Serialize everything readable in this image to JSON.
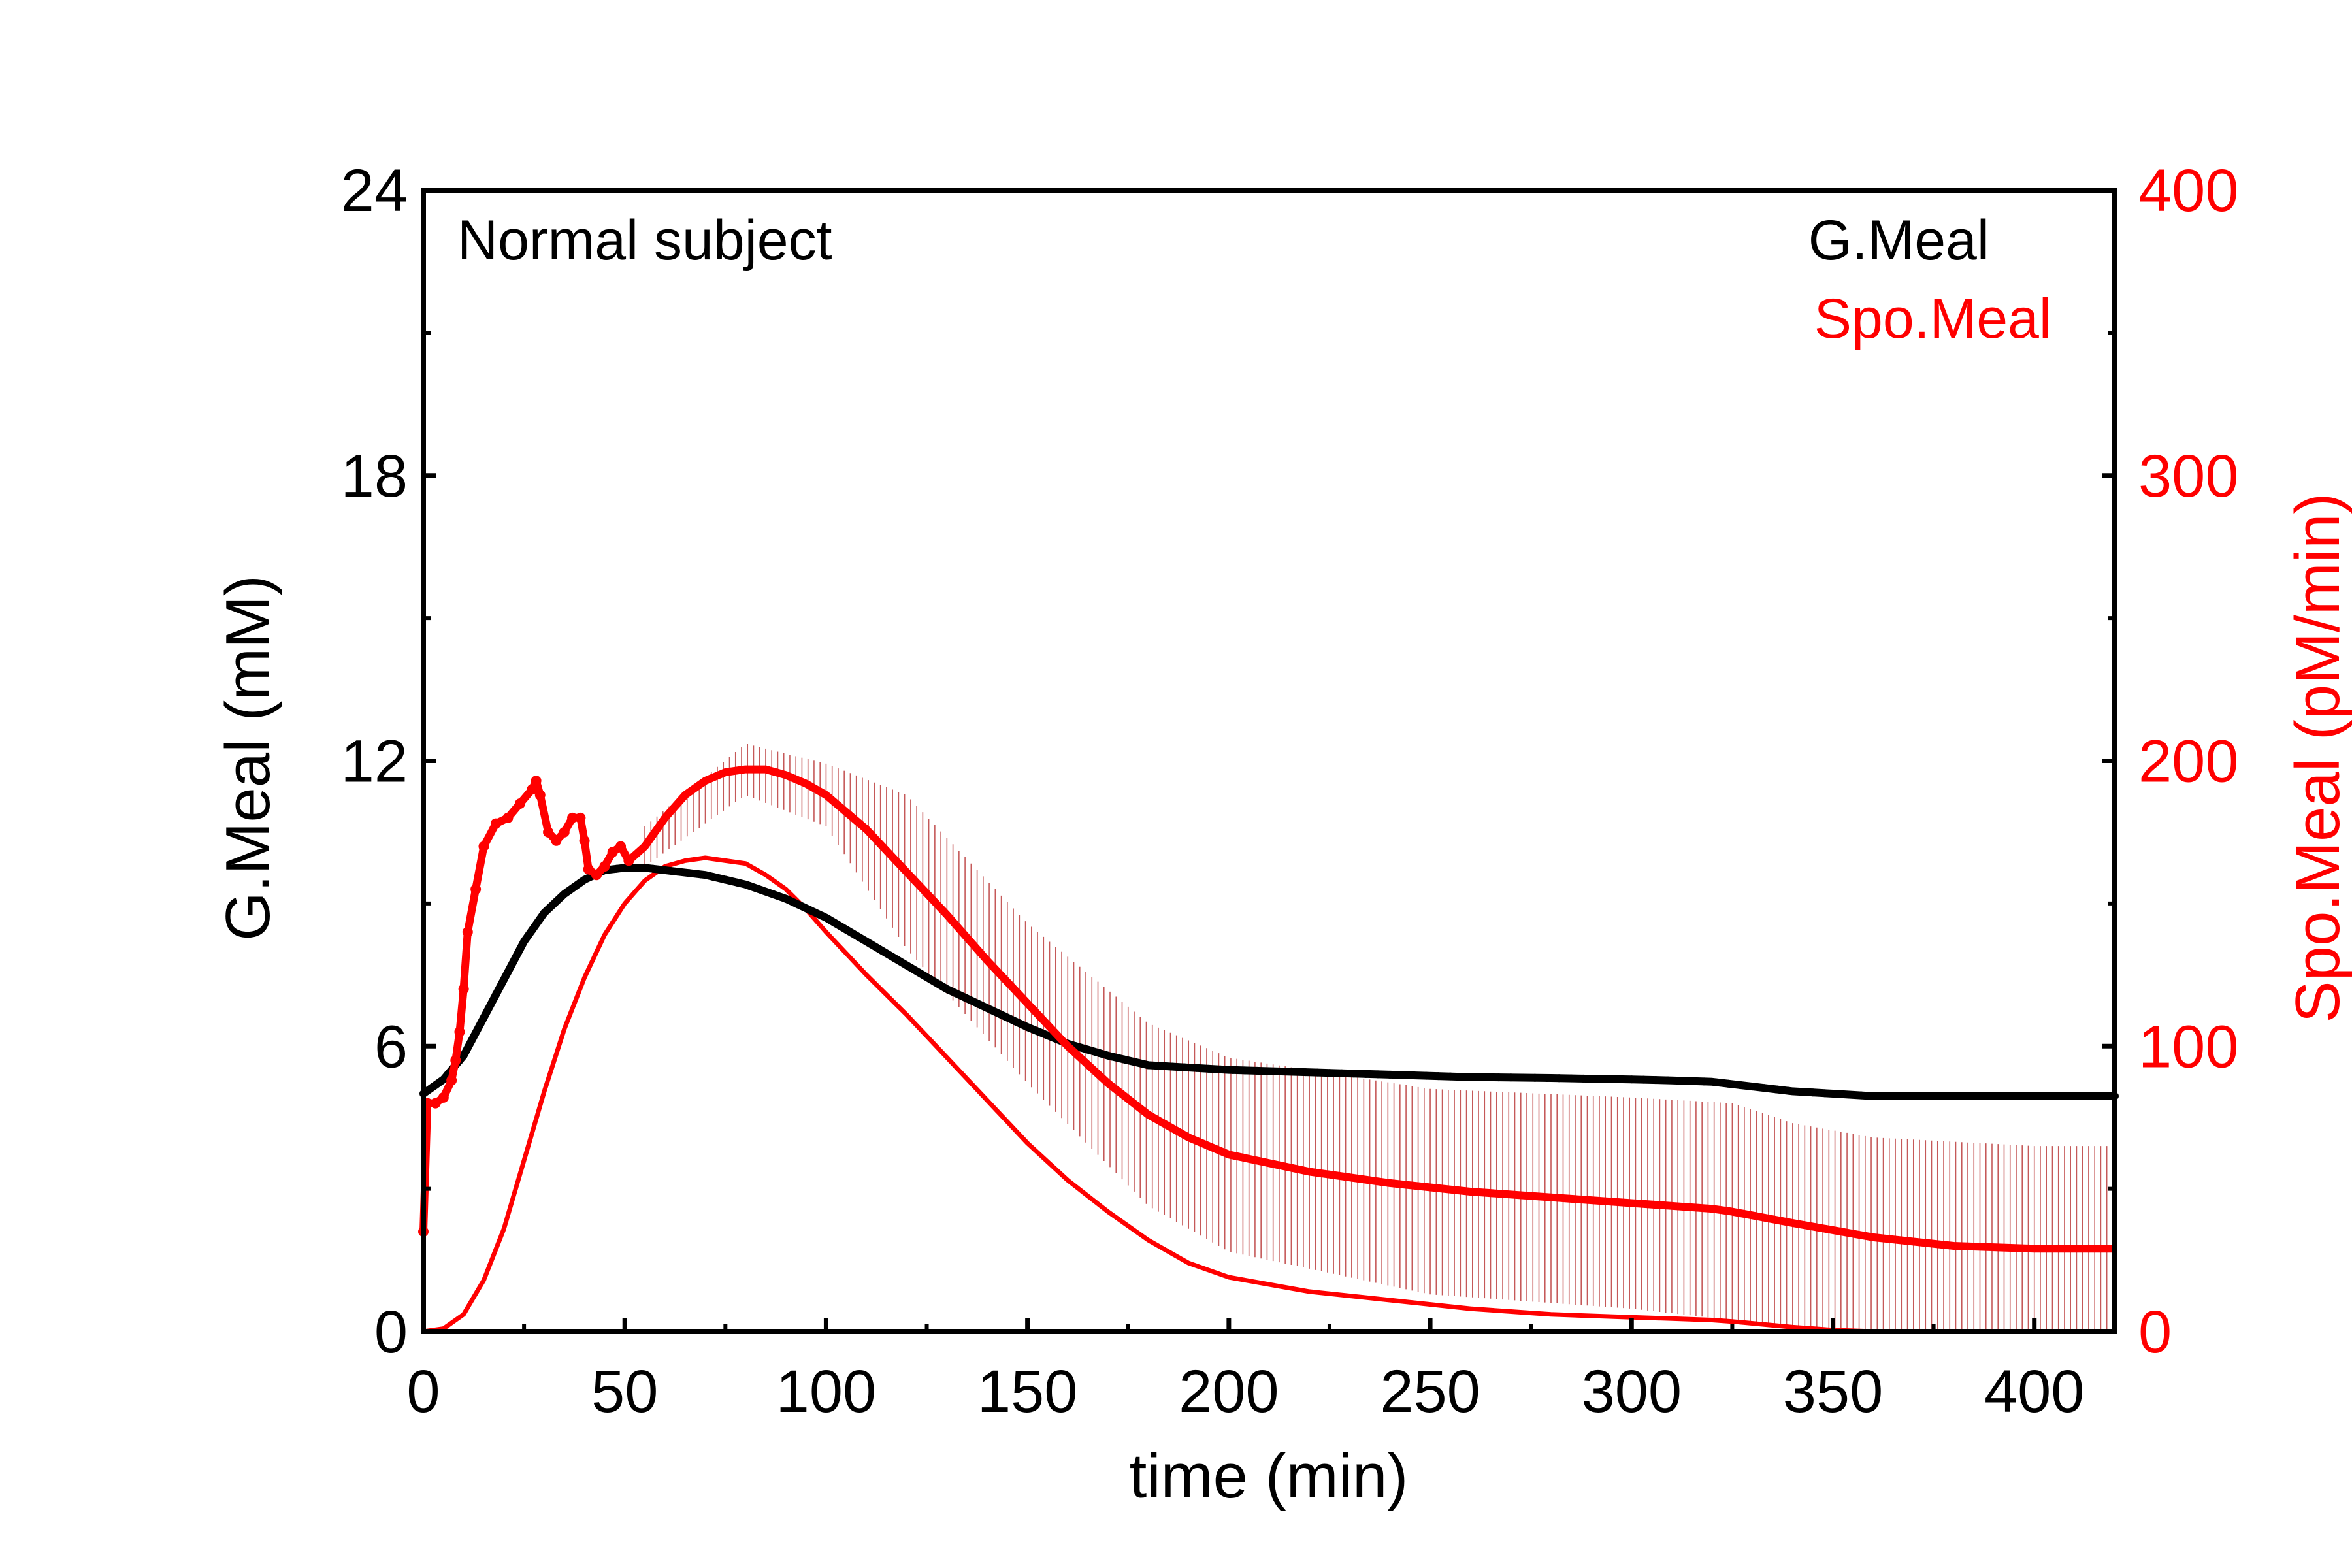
{
  "chart_data": {
    "type": "line",
    "annotation": "Normal subject",
    "xlabel": "time (min)",
    "ylabel_left": "G.Meal (mM)",
    "ylabel_right": "Spo.Meal (pM/min)",
    "xlim": [
      0,
      420
    ],
    "ylim_left": [
      0,
      24
    ],
    "ylim_right": [
      0,
      400
    ],
    "x_ticks": [
      "0",
      "50",
      "100",
      "150",
      "200",
      "250",
      "300",
      "350",
      "400"
    ],
    "y_ticks_left": [
      "0",
      "6",
      "12",
      "18",
      "24"
    ],
    "y_ticks_right": [
      "0",
      "100",
      "200",
      "300",
      "400"
    ],
    "grid": false,
    "legend_position": "top-right",
    "legend": [
      "G.Meal",
      "Spo.Meal"
    ],
    "colors": {
      "gmeal": "#000000",
      "spomeal": "#ff0000",
      "errorbar": "#b22222"
    },
    "series": [
      {
        "name": "G.Meal",
        "axis": "left",
        "style": "thick-black-dotted-line",
        "x": [
          0,
          5,
          10,
          15,
          20,
          25,
          30,
          35,
          40,
          45,
          50,
          55,
          60,
          70,
          80,
          90,
          100,
          110,
          120,
          130,
          140,
          150,
          160,
          170,
          180,
          200,
          220,
          240,
          260,
          280,
          300,
          310,
          320,
          330,
          340,
          350,
          360,
          380,
          400,
          420
        ],
        "values": [
          5.0,
          5.3,
          5.8,
          6.6,
          7.4,
          8.2,
          8.8,
          9.2,
          9.5,
          9.7,
          9.75,
          9.75,
          9.7,
          9.6,
          9.4,
          9.1,
          8.7,
          8.2,
          7.7,
          7.2,
          6.8,
          6.4,
          6.05,
          5.8,
          5.6,
          5.5,
          5.45,
          5.4,
          5.35,
          5.33,
          5.3,
          5.28,
          5.25,
          5.15,
          5.05,
          5.0,
          4.95,
          4.95,
          4.95,
          4.95
        ]
      },
      {
        "name": "Spo.Meal",
        "axis": "right",
        "style": "thick-red-line-with-error-bars",
        "x": [
          0,
          1,
          3,
          5,
          7,
          8,
          9,
          10,
          11,
          13,
          15,
          18,
          21,
          24,
          27,
          28,
          29,
          31,
          33,
          35,
          37,
          39,
          40,
          41,
          43,
          45,
          47,
          49,
          51,
          55,
          60,
          65,
          70,
          75,
          80,
          85,
          90,
          95,
          100,
          110,
          120,
          130,
          140,
          150,
          160,
          170,
          180,
          190,
          200,
          220,
          240,
          260,
          280,
          300,
          310,
          320,
          325,
          340,
          360,
          380,
          400,
          420
        ],
        "values": [
          35,
          80,
          80,
          82,
          88,
          95,
          105,
          120,
          140,
          155,
          170,
          178,
          180,
          185,
          190,
          193,
          188,
          175,
          172,
          175,
          180,
          180,
          172,
          162,
          160,
          163,
          168,
          170,
          165,
          170,
          180,
          188,
          193,
          196,
          197,
          197,
          195,
          192,
          188,
          176,
          161,
          146,
          130,
          115,
          100,
          87,
          76,
          68,
          62,
          56,
          52,
          49,
          47,
          45,
          44,
          43,
          42,
          38,
          33,
          30,
          29,
          29
        ],
        "error_band": {
          "x": [
            55,
            80,
            100,
            120,
            150,
            180,
            200,
            250,
            300,
            325,
            340,
            360,
            400,
            420
          ],
          "upper": [
            177,
            206,
            199,
            188,
            143,
            108,
            96,
            85,
            82,
            80,
            73,
            68,
            65,
            65
          ],
          "lower": [
            163,
            188,
            177,
            134,
            87,
            44,
            28,
            13,
            8,
            4,
            2,
            0,
            0,
            0
          ]
        }
      },
      {
        "name": "",
        "axis": "right",
        "style": "thin-red-line",
        "x": [
          0,
          5,
          10,
          15,
          20,
          25,
          30,
          35,
          40,
          45,
          50,
          55,
          60,
          65,
          70,
          75,
          80,
          85,
          90,
          95,
          100,
          110,
          120,
          130,
          140,
          150,
          160,
          170,
          180,
          190,
          200,
          220,
          240,
          260,
          280,
          300,
          310,
          320,
          325,
          340,
          350,
          360
        ],
        "values": [
          0,
          1,
          6,
          18,
          36,
          60,
          84,
          106,
          124,
          139,
          150,
          158,
          163,
          165,
          166,
          165,
          164,
          160,
          155,
          148,
          140,
          125,
          111,
          96,
          81,
          66,
          53,
          42,
          32,
          24,
          19,
          14,
          11,
          8,
          6,
          5,
          4.5,
          4,
          3.5,
          1.5,
          0.5,
          0
        ]
      }
    ]
  }
}
